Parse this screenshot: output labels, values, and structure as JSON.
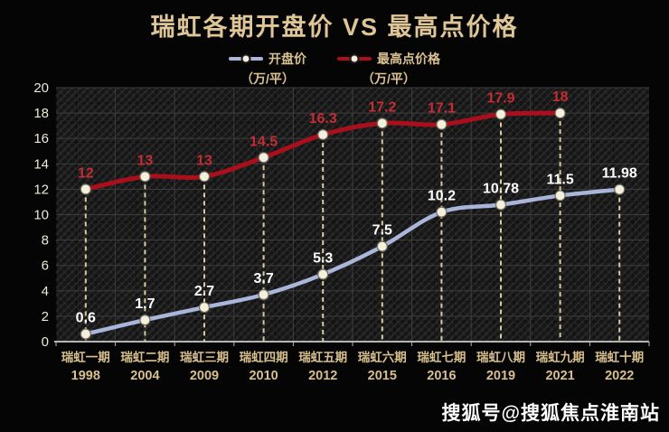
{
  "page": {
    "watermark": "搜狐号@搜狐焦点淮南站"
  },
  "colors": {
    "title": "#dfc697",
    "legend_text": "#d9c191",
    "axis_value_text": "#eee8d8",
    "category_text": "#d8bf8e",
    "dashed_line": "#d8cca4",
    "grid_line": "#3d3d3d",
    "axis_line": "#b5b5b5",
    "marker_fill": "#f4efdc",
    "marker_stroke": "#6e6e5c",
    "watermark": "#fdfdfd",
    "background": "#050505"
  },
  "chart_data": {
    "type": "line",
    "title": "瑞虹各期开盘价 VS 最高点价格",
    "legend_position": "top",
    "grid": true,
    "ylim": [
      0,
      20
    ],
    "ytick_step": 2,
    "categories": [
      {
        "name": "瑞虹一期",
        "year": "1998"
      },
      {
        "name": "瑞虹二期",
        "year": "2004"
      },
      {
        "name": "瑞虹三期",
        "year": "2009"
      },
      {
        "name": "瑞虹四期",
        "year": "2010"
      },
      {
        "name": "瑞虹五期",
        "year": "2012"
      },
      {
        "name": "瑞虹六期",
        "year": "2015"
      },
      {
        "name": "瑞虹七期",
        "year": "2016"
      },
      {
        "name": "瑞虹八期",
        "year": "2019"
      },
      {
        "name": "瑞虹九期",
        "year": "2021"
      },
      {
        "name": "瑞虹十期",
        "year": "2022"
      }
    ],
    "series": [
      {
        "name": "开盘价",
        "unit": "（万/平）",
        "color": "#a9b5d9",
        "label_color": "#ffffff",
        "values": [
          0.6,
          1.7,
          2.7,
          3.7,
          5.3,
          7.5,
          10.2,
          10.78,
          11.5,
          11.98
        ]
      },
      {
        "name": "最高点价格",
        "unit": "（万/平）",
        "color": "#ab0f1c",
        "label_color": "#c32d35",
        "values": [
          12,
          13,
          13,
          14.5,
          16.3,
          17.2,
          17.1,
          17.9,
          18,
          null
        ]
      }
    ]
  }
}
